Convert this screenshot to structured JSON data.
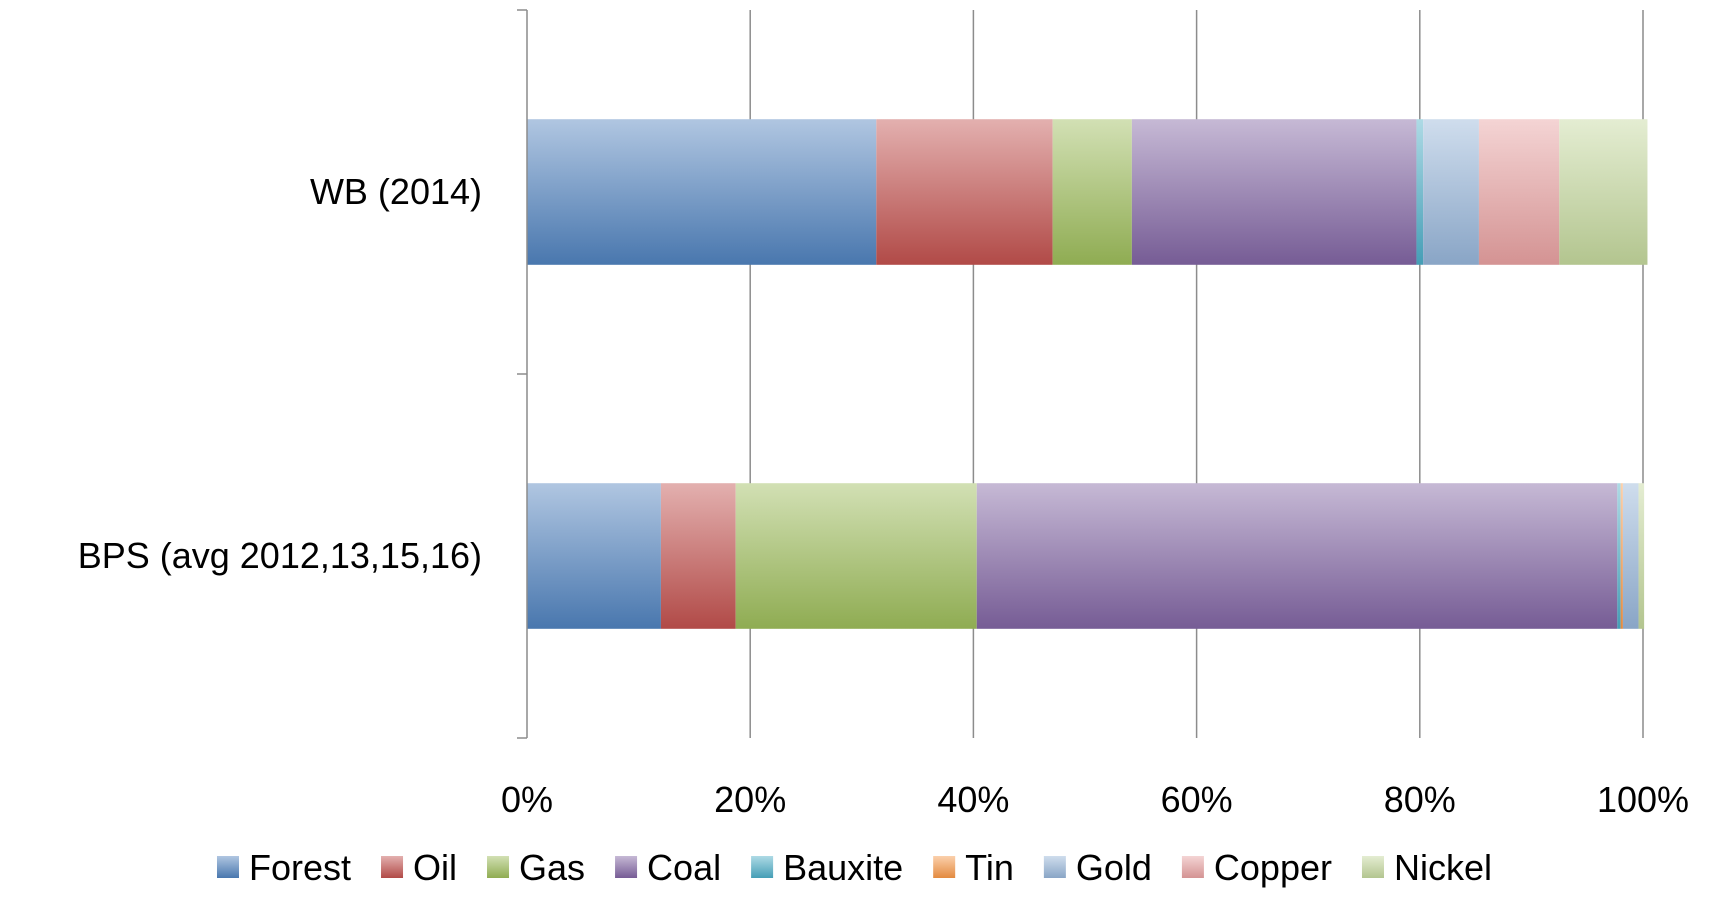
{
  "chart_data": {
    "type": "bar",
    "orientation": "horizontal",
    "stacking": "percent",
    "categories": [
      "WB (2014)",
      "BPS (avg 2012,13,15,16)"
    ],
    "series": [
      {
        "name": "Forest",
        "values": [
          31.3,
          12.0
        ],
        "color": "#4F81BD"
      },
      {
        "name": "Oil",
        "values": [
          15.8,
          6.7
        ],
        "color": "#C0504D"
      },
      {
        "name": "Gas",
        "values": [
          7.1,
          21.6
        ],
        "color": "#9BBB59"
      },
      {
        "name": "Coal",
        "values": [
          25.5,
          57.4
        ],
        "color": "#8064A2"
      },
      {
        "name": "Bauxite",
        "values": [
          0.6,
          0.3
        ],
        "color": "#4BACC6"
      },
      {
        "name": "Tin",
        "values": [
          0.0,
          0.2
        ],
        "color": "#F79646"
      },
      {
        "name": "Gold",
        "values": [
          5.0,
          1.4
        ],
        "color": "#95B3D7"
      },
      {
        "name": "Copper",
        "values": [
          7.2,
          0.0
        ],
        "color": "#E6A0A0"
      },
      {
        "name": "Nickel",
        "values": [
          7.9,
          0.5
        ],
        "color": "#C3D69B"
      }
    ],
    "xlim": [
      0,
      100
    ],
    "xticks": [
      "0%",
      "20%",
      "40%",
      "60%",
      "80%",
      "100%"
    ],
    "grid": true,
    "legend_position": "bottom"
  }
}
